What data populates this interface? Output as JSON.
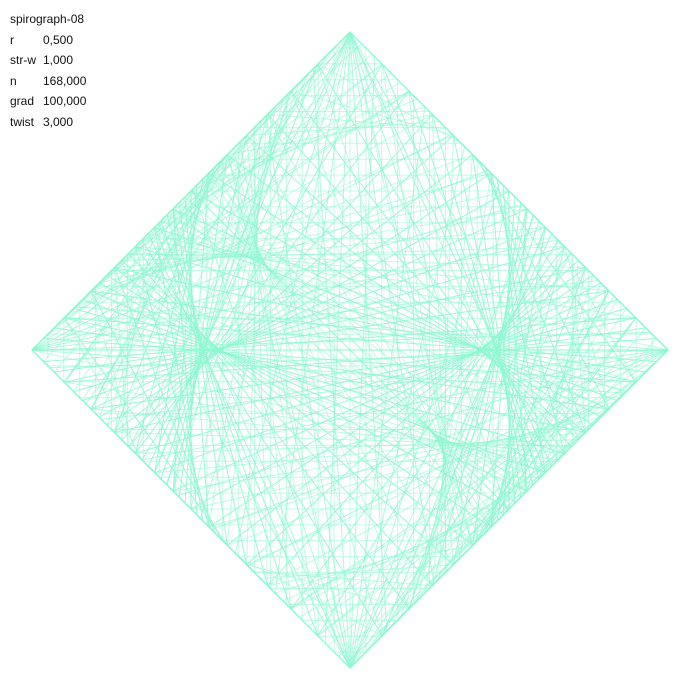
{
  "title": "spirograph-08",
  "params": [
    {
      "key": "r",
      "value": "0,500"
    },
    {
      "key": "str-w",
      "value": "1,000"
    },
    {
      "key": "n",
      "value": "168,000"
    },
    {
      "key": "grad",
      "value": "100,000"
    },
    {
      "key": "twist",
      "value": "3,000"
    }
  ],
  "style": {
    "stroke_color": "#8ef8d2",
    "background": "#ffffff"
  }
}
